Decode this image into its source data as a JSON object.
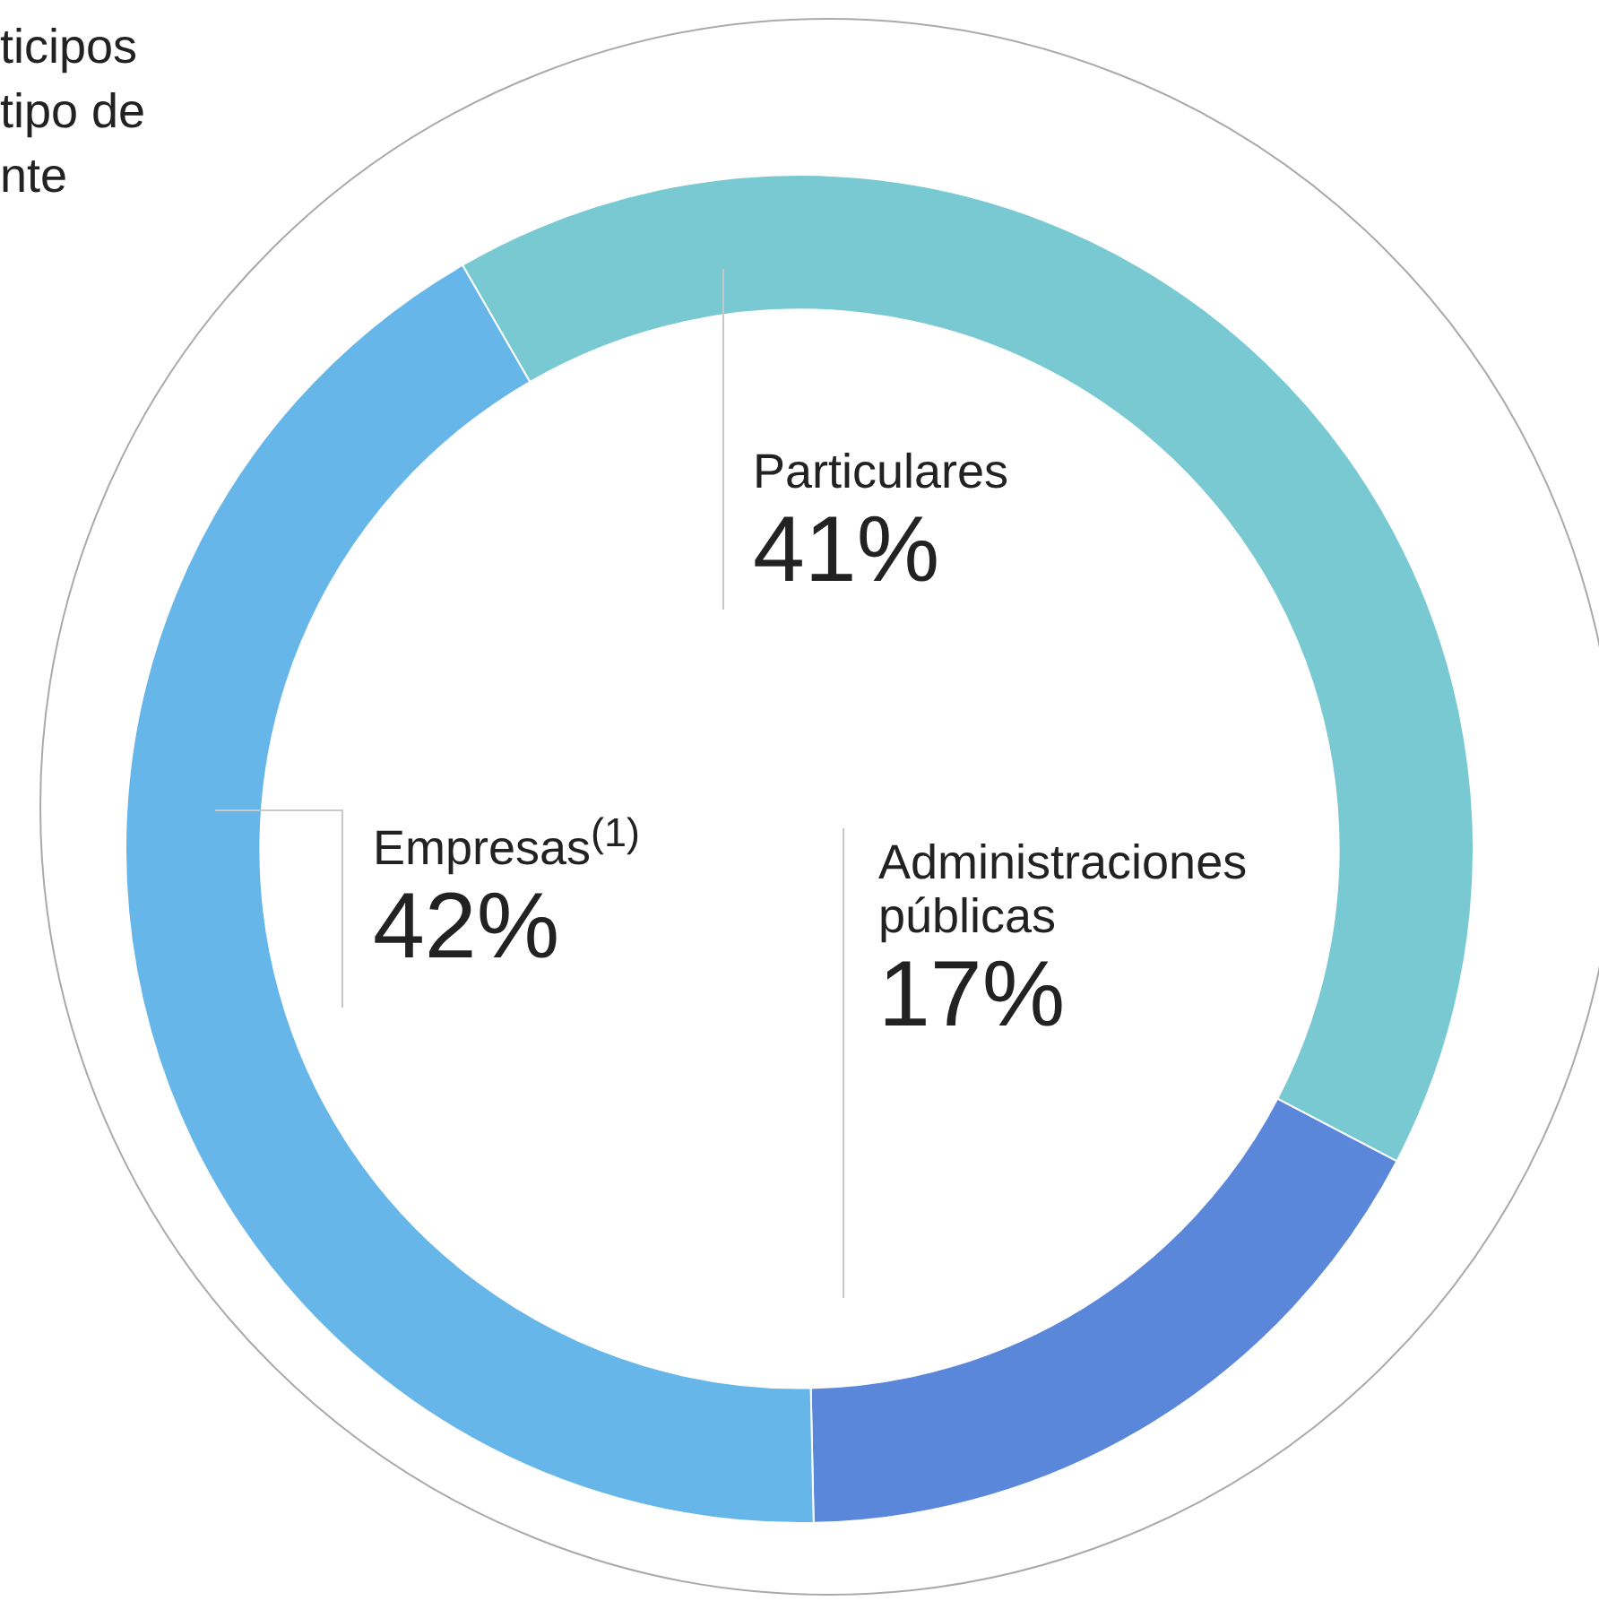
{
  "chart_data": {
    "type": "donut",
    "title": "ticipos\ntipo de\nnte",
    "categories": [
      "Particulares",
      "Administraciones públicas",
      "Empresas$^{(1)}$"
    ],
    "values": [
      41,
      17,
      42
    ],
    "colors": [
      "#78c9d2",
      "#5b87db",
      "#66b6e9"
    ],
    "value_labels": [
      "41%",
      "17%",
      "42%"
    ],
    "legend": false
  }
}
